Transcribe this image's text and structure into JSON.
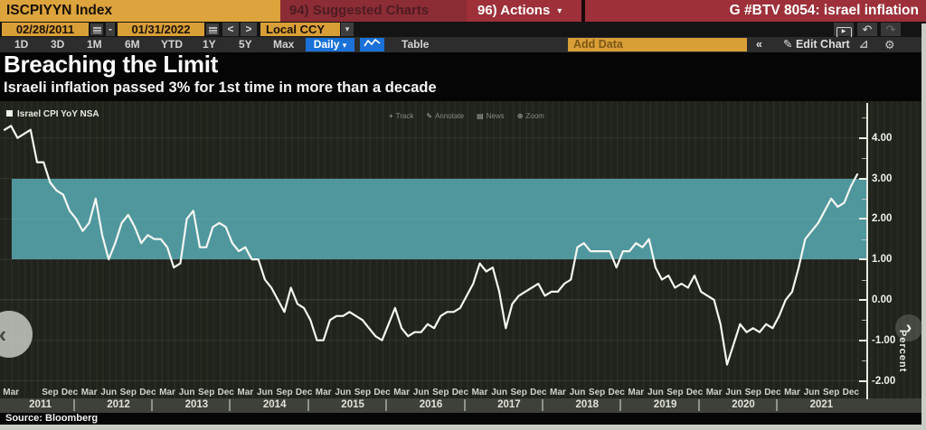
{
  "header": {
    "ticker": "ISCPIYYN Index",
    "suggested_charts": "94) Suggested Charts",
    "actions": "96) Actions",
    "screen_title": "G #BTV 8054: israel inflation"
  },
  "date_bar": {
    "start_date": "02/28/2011",
    "separator": "-",
    "end_date": "01/31/2022",
    "currency": "Local CCY"
  },
  "toolbar": {
    "ranges": [
      "1D",
      "3D",
      "1M",
      "6M",
      "YTD",
      "1Y",
      "5Y",
      "Max"
    ],
    "frequency": "Daily",
    "table_label": "Table",
    "add_data_placeholder": "Add Data",
    "edit_chart_label": "Edit Chart"
  },
  "icons": {
    "dropdown": "▾",
    "prev": "<",
    "next": ">",
    "play": "▶",
    "undo": "↶",
    "redo": "↷",
    "collapse": "«",
    "pencil": "✎",
    "chart_annotate": "⊿",
    "gear": "⚙",
    "nav_left": "‹",
    "nav_right": "›"
  },
  "titles": {
    "title": "Breaching the Limit",
    "subtitle": "Israeli inflation passed 3% for 1st time in more than a decade"
  },
  "chart_tools": [
    {
      "icon": "+",
      "label": "Track"
    },
    {
      "icon": "✎",
      "label": "Annotate"
    },
    {
      "icon": "▤",
      "label": "News"
    },
    {
      "icon": "⊕",
      "label": "Zoom"
    }
  ],
  "legend": "Israel CPI YoY NSA",
  "source": "Source: Bloomberg",
  "colors": {
    "accent_amber": "#d99f37",
    "banner_red": "#9d3039",
    "band_teal": "#4f979d",
    "frequency_blue": "#1a72d8",
    "line_white": "#f5f7f2"
  },
  "chart_data": {
    "type": "line",
    "title": "Breaching the Limit",
    "subtitle": "Israeli inflation passed 3% for 1st time in more than a decade",
    "ylabel": "Percent",
    "yticks": [
      4,
      3,
      2,
      1,
      0,
      -1,
      -2
    ],
    "ytick_labels": [
      "4.00",
      "3.00",
      "2.00",
      "1.00",
      "0.00",
      "-1.00",
      "-2.00"
    ],
    "ylim": [
      -2.3,
      4.9
    ],
    "band": {
      "from": 1,
      "to": 3,
      "color": "#4f979d"
    },
    "x_start": "2011-02",
    "x_end": "2022-01",
    "frequency": "monthly",
    "series": [
      {
        "name": "Israel CPI YoY NSA",
        "color": "#f5f7f2",
        "values": [
          4.2,
          4.3,
          4.0,
          4.1,
          4.2,
          3.4,
          3.4,
          2.9,
          2.7,
          2.6,
          2.2,
          2.0,
          1.7,
          1.9,
          2.5,
          1.6,
          1.0,
          1.4,
          1.9,
          2.1,
          1.8,
          1.4,
          1.6,
          1.5,
          1.5,
          1.3,
          0.8,
          0.9,
          2.0,
          2.2,
          1.3,
          1.3,
          1.8,
          1.9,
          1.8,
          1.4,
          1.2,
          1.3,
          1.0,
          1.0,
          0.5,
          0.3,
          0.0,
          -0.3,
          0.3,
          -0.1,
          -0.2,
          -0.5,
          -1.0,
          -1.0,
          -0.5,
          -0.4,
          -0.4,
          -0.3,
          -0.4,
          -0.5,
          -0.7,
          -0.9,
          -1.0,
          -0.6,
          -0.2,
          -0.7,
          -0.9,
          -0.8,
          -0.8,
          -0.6,
          -0.7,
          -0.4,
          -0.3,
          -0.3,
          -0.2,
          0.1,
          0.4,
          0.9,
          0.7,
          0.8,
          0.2,
          -0.7,
          -0.1,
          0.1,
          0.2,
          0.3,
          0.4,
          0.1,
          0.2,
          0.2,
          0.4,
          0.5,
          1.3,
          1.4,
          1.2,
          1.2,
          1.2,
          1.2,
          0.8,
          1.2,
          1.2,
          1.4,
          1.3,
          1.5,
          0.8,
          0.5,
          0.6,
          0.3,
          0.4,
          0.3,
          0.6,
          0.2,
          0.1,
          0.0,
          -0.6,
          -1.6,
          -1.1,
          -0.6,
          -0.8,
          -0.7,
          -0.8,
          -0.6,
          -0.7,
          -0.4,
          0.0,
          0.2,
          0.8,
          1.5,
          1.7,
          1.9,
          2.2,
          2.5,
          2.3,
          2.4,
          2.8,
          3.1
        ]
      }
    ],
    "x_axis": {
      "years": [
        {
          "year": "2011",
          "months": [
            "Mar",
            "Sep",
            "Dec"
          ]
        },
        {
          "year": "2012",
          "months": [
            "Mar",
            "Jun",
            "Sep",
            "Dec"
          ]
        },
        {
          "year": "2013",
          "months": [
            "Mar",
            "Jun",
            "Sep",
            "Dec"
          ]
        },
        {
          "year": "2014",
          "months": [
            "Mar",
            "Jun",
            "Sep",
            "Dec"
          ]
        },
        {
          "year": "2015",
          "months": [
            "Mar",
            "Jun",
            "Sep",
            "Dec"
          ]
        },
        {
          "year": "2016",
          "months": [
            "Mar",
            "Jun",
            "Sep",
            "Dec"
          ]
        },
        {
          "year": "2017",
          "months": [
            "Mar",
            "Jun",
            "Sep",
            "Dec"
          ]
        },
        {
          "year": "2018",
          "months": [
            "Mar",
            "Jun",
            "Sep",
            "Dec"
          ]
        },
        {
          "year": "2019",
          "months": [
            "Mar",
            "Jun",
            "Sep",
            "Dec"
          ]
        },
        {
          "year": "2020",
          "months": [
            "Mar",
            "Jun",
            "Sep",
            "Dec"
          ]
        },
        {
          "year": "2021",
          "months": [
            "Mar",
            "Jun",
            "Sep",
            "Dec"
          ]
        }
      ]
    }
  }
}
